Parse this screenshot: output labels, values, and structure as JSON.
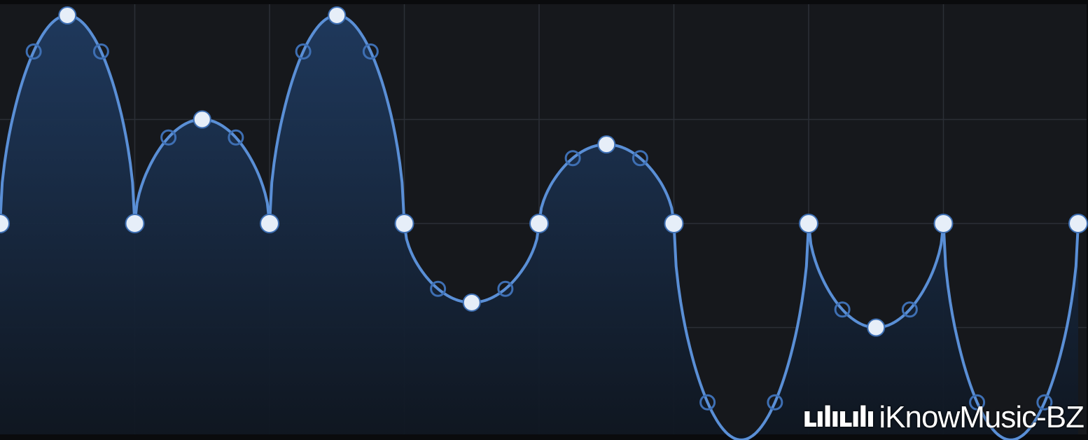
{
  "editor": {
    "title": "",
    "colors": {
      "background": "#16181c",
      "frame": "#0a0b0d",
      "grid": "#2b2f36",
      "curve": "#5a8fd6",
      "fill_top": "#1f3a5f",
      "fill_bottom": "#0f1620",
      "node": "#e6eef8",
      "handle": "#3e6fb3"
    },
    "y_range": [
      0,
      1
    ],
    "grid": {
      "columns": 8,
      "rows": 4
    },
    "nodes": [
      {
        "t": 0.0,
        "v": 0.5,
        "shape": "arch"
      },
      {
        "t": 0.125,
        "v": 0.5,
        "shape": "arch"
      },
      {
        "t": 0.25,
        "v": 0.5,
        "shape": "arch"
      },
      {
        "t": 0.375,
        "v": 0.5,
        "shape": "arch"
      },
      {
        "t": 0.5,
        "v": 0.5,
        "shape": "arch"
      },
      {
        "t": 0.625,
        "v": 0.5,
        "shape": "arch"
      },
      {
        "t": 0.75,
        "v": 0.5,
        "shape": "arch"
      },
      {
        "t": 0.875,
        "v": 0.5,
        "shape": "cusp"
      },
      {
        "t": 1.0,
        "v": 0.5,
        "shape": "none"
      }
    ],
    "segments": [
      {
        "peak": 1.0,
        "peak_pos": 0.5
      },
      {
        "peak": 0.75,
        "peak_pos": 0.5
      },
      {
        "peak": 1.0,
        "peak_pos": 0.5
      },
      {
        "peak": 0.31,
        "peak_pos": 0.5
      },
      {
        "peak": 0.69,
        "peak_pos": 0.5
      },
      {
        "peak": -0.02,
        "peak_pos": 0.5
      },
      {
        "peak": 0.25,
        "peak_pos": 0.5,
        "cusp": true
      },
      {
        "peak": -0.02,
        "peak_pos": 0.5
      }
    ]
  },
  "watermark": {
    "logo": "bilibili",
    "text": "iKnowMusic-BZ"
  }
}
